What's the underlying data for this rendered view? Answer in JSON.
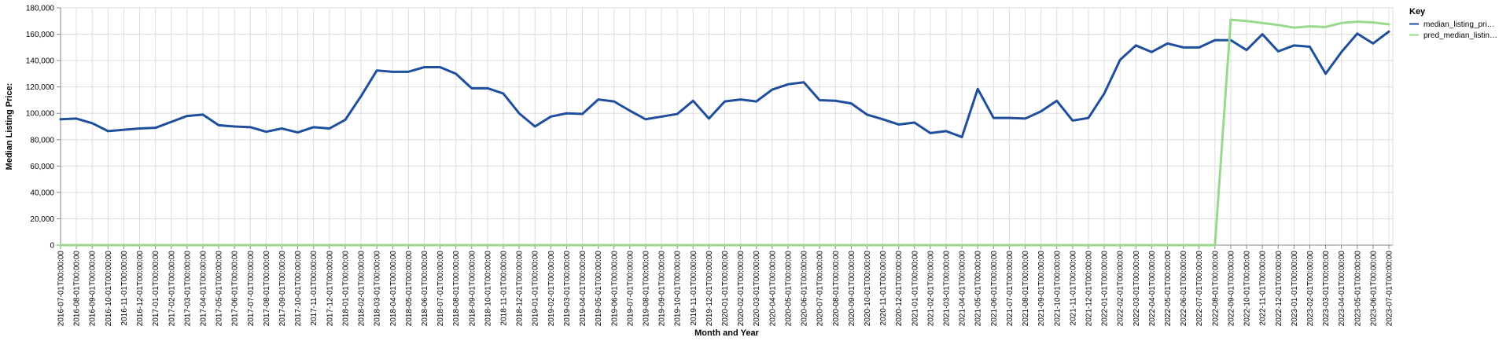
{
  "chart_data": {
    "type": "line",
    "xlabel": "Month and Year",
    "ylabel": "Median Listing Price:",
    "ylim": [
      0,
      180000
    ],
    "yticks": [
      0,
      20000,
      40000,
      60000,
      80000,
      100000,
      120000,
      140000,
      160000,
      180000
    ],
    "ytick_labels": [
      "0",
      "20,000",
      "40,000",
      "60,000",
      "80,000",
      "100,000",
      "120,000",
      "140,000",
      "160,000",
      "180,000"
    ],
    "grid": true,
    "legend": {
      "title": "Key",
      "position": "top-right",
      "entries": [
        "median_listing_pri…",
        "pred_median_listin…"
      ]
    },
    "categories": [
      "2016-07-01T00:00:00",
      "2016-08-01T00:00:00",
      "2016-09-01T00:00:00",
      "2016-10-01T00:00:00",
      "2016-11-01T00:00:00",
      "2016-12-01T00:00:00",
      "2017-01-01T00:00:00",
      "2017-02-01T00:00:00",
      "2017-03-01T00:00:00",
      "2017-04-01T00:00:00",
      "2017-05-01T00:00:00",
      "2017-06-01T00:00:00",
      "2017-07-01T00:00:00",
      "2017-08-01T00:00:00",
      "2017-09-01T00:00:00",
      "2017-10-01T00:00:00",
      "2017-11-01T00:00:00",
      "2017-12-01T00:00:00",
      "2018-01-01T00:00:00",
      "2018-02-01T00:00:00",
      "2018-03-01T00:00:00",
      "2018-04-01T00:00:00",
      "2018-05-01T00:00:00",
      "2018-06-01T00:00:00",
      "2018-07-01T00:00:00",
      "2018-08-01T00:00:00",
      "2018-09-01T00:00:00",
      "2018-10-01T00:00:00",
      "2018-11-01T00:00:00",
      "2018-12-01T00:00:00",
      "2019-01-01T00:00:00",
      "2019-02-01T00:00:00",
      "2019-03-01T00:00:00",
      "2019-04-01T00:00:00",
      "2019-05-01T00:00:00",
      "2019-06-01T00:00:00",
      "2019-07-01T00:00:00",
      "2019-08-01T00:00:00",
      "2019-09-01T00:00:00",
      "2019-10-01T00:00:00",
      "2019-11-01T00:00:00",
      "2019-12-01T00:00:00",
      "2020-01-01T00:00:00",
      "2020-02-01T00:00:00",
      "2020-03-01T00:00:00",
      "2020-04-01T00:00:00",
      "2020-05-01T00:00:00",
      "2020-06-01T00:00:00",
      "2020-07-01T00:00:00",
      "2020-08-01T00:00:00",
      "2020-09-01T00:00:00",
      "2020-10-01T00:00:00",
      "2020-11-01T00:00:00",
      "2020-12-01T00:00:00",
      "2021-01-01T00:00:00",
      "2021-02-01T00:00:00",
      "2021-03-01T00:00:00",
      "2021-04-01T00:00:00",
      "2021-05-01T00:00:00",
      "2021-06-01T00:00:00",
      "2021-07-01T00:00:00",
      "2021-08-01T00:00:00",
      "2021-09-01T00:00:00",
      "2021-10-01T00:00:00",
      "2021-11-01T00:00:00",
      "2021-12-01T00:00:00",
      "2022-01-01T00:00:00",
      "2022-02-01T00:00:00",
      "2022-03-01T00:00:00",
      "2022-04-01T00:00:00",
      "2022-05-01T00:00:00",
      "2022-06-01T00:00:00",
      "2022-07-01T00:00:00",
      "2022-08-01T00:00:00",
      "2022-09-01T00:00:00",
      "2022-10-01T00:00:00",
      "2022-11-01T00:00:00",
      "2022-12-01T00:00:00",
      "2023-01-01T00:00:00",
      "2023-02-01T00:00:00",
      "2023-03-01T00:00:00",
      "2023-04-01T00:00:00",
      "2023-05-01T00:00:00",
      "2023-06-01T00:00:00",
      "2023-07-01T00:00:00"
    ],
    "series": [
      {
        "name": "median_listing_pri…",
        "color": "#1f4e9c",
        "values": [
          95500,
          96000,
          92500,
          86500,
          87500,
          88500,
          89000,
          93500,
          98000,
          99000,
          91000,
          90000,
          89500,
          86000,
          88500,
          85500,
          89500,
          88500,
          95000,
          113000,
          132500,
          131500,
          131500,
          135000,
          135000,
          130000,
          119000,
          119000,
          115000,
          100000,
          90000,
          97500,
          100000,
          99500,
          110500,
          109000,
          102000,
          95500,
          97500,
          99500,
          109500,
          96000,
          109000,
          110500,
          109000,
          118000,
          122000,
          123500,
          110000,
          109500,
          107500,
          99000,
          95500,
          91500,
          93000,
          85000,
          86500,
          82000,
          118500,
          96500,
          96500,
          96000,
          101500,
          109500,
          94500,
          96500,
          115000,
          140500,
          151500,
          146500,
          153000,
          150000,
          150000,
          155500,
          155500,
          148000,
          160000,
          147000,
          151500,
          150500,
          130000,
          146500,
          160500,
          153000,
          162000
        ]
      },
      {
        "name": "pred_median_listin…",
        "color": "#98d98e",
        "values": [
          0,
          0,
          0,
          0,
          0,
          0,
          0,
          0,
          0,
          0,
          0,
          0,
          0,
          0,
          0,
          0,
          0,
          0,
          0,
          0,
          0,
          0,
          0,
          0,
          0,
          0,
          0,
          0,
          0,
          0,
          0,
          0,
          0,
          0,
          0,
          0,
          0,
          0,
          0,
          0,
          0,
          0,
          0,
          0,
          0,
          0,
          0,
          0,
          0,
          0,
          0,
          0,
          0,
          0,
          0,
          0,
          0,
          0,
          0,
          0,
          0,
          0,
          0,
          0,
          0,
          0,
          0,
          0,
          0,
          0,
          0,
          0,
          0,
          0,
          171000,
          170000,
          168500,
          167000,
          165000,
          166000,
          165500,
          168500,
          169500,
          169000,
          167500
        ]
      }
    ]
  }
}
